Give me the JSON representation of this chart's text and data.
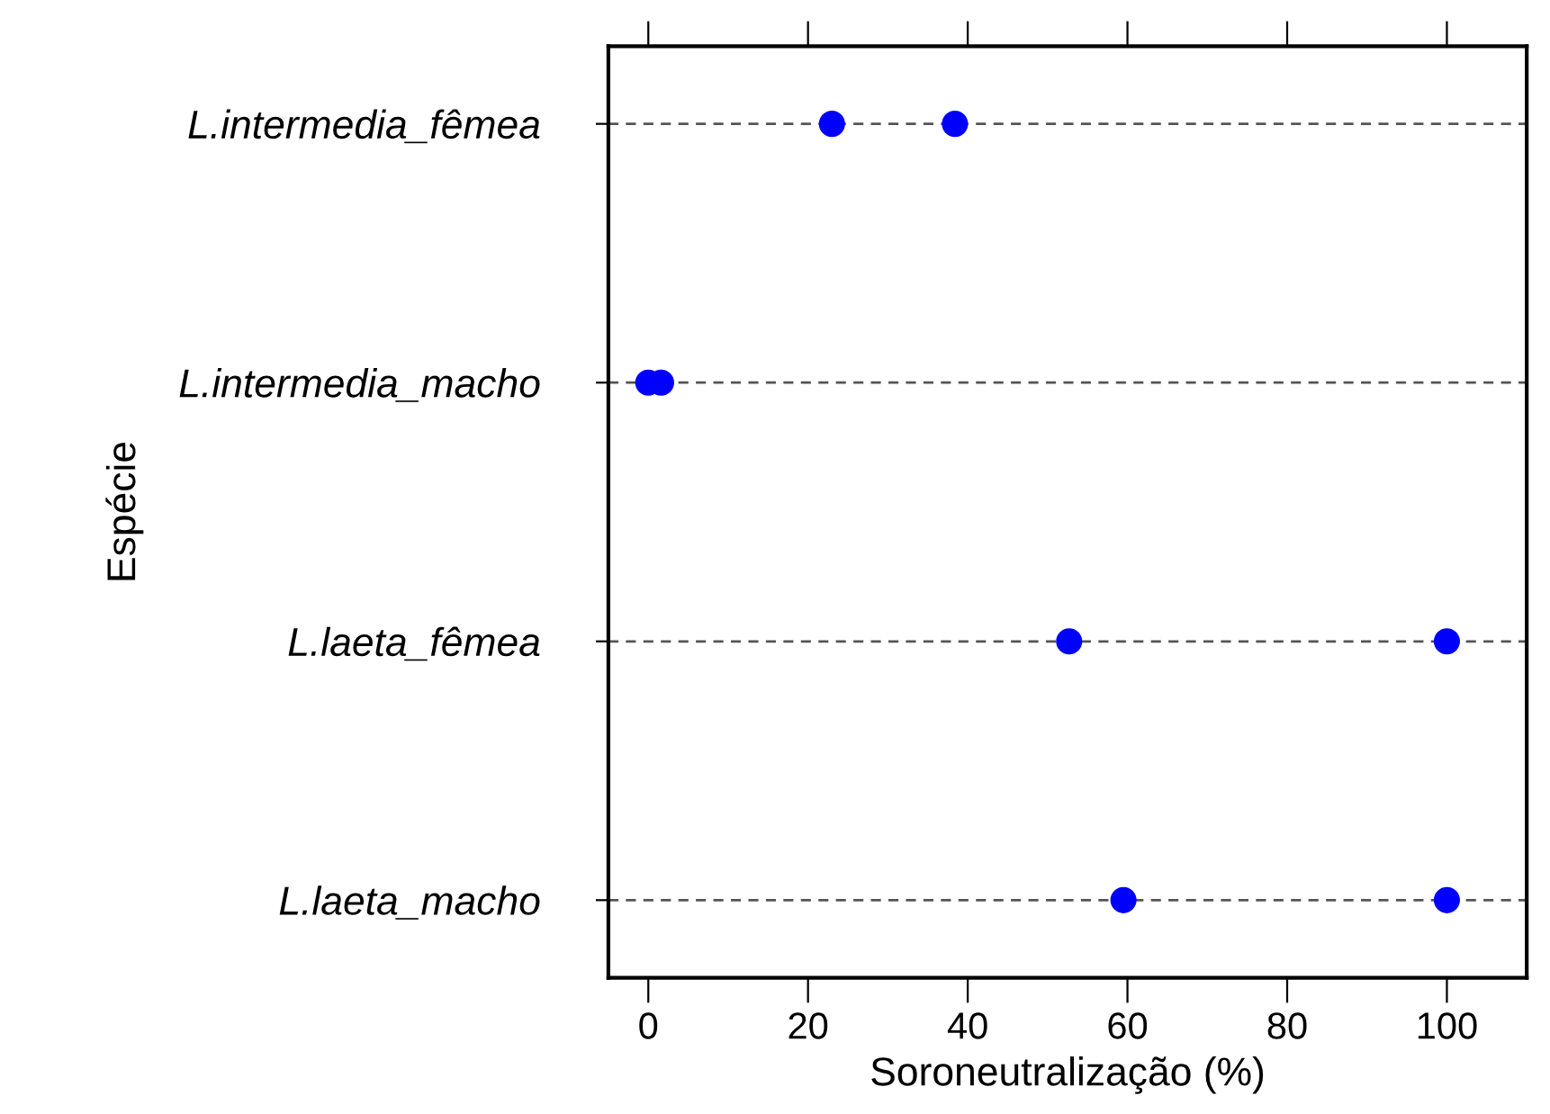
{
  "chart_data": {
    "type": "scatter",
    "orientation": "horizontal",
    "xlabel": "Soroneutralização (%)",
    "ylabel": "Espécie",
    "categories": [
      "L.intermedia_fêmea",
      "L.intermedia_macho",
      "L.laeta_fêmea",
      "L.laeta_macho"
    ],
    "series": [
      {
        "color": "#0000ff",
        "values": [
          23,
          0,
          52.7,
          59.5
        ]
      },
      {
        "color": "#0000ff",
        "values": [
          38.4,
          1.6,
          100,
          100
        ]
      }
    ],
    "xlim": [
      -5,
      110
    ],
    "xticks": [
      0,
      20,
      40,
      60,
      80,
      100
    ],
    "grid": "y",
    "marker": "circle"
  }
}
